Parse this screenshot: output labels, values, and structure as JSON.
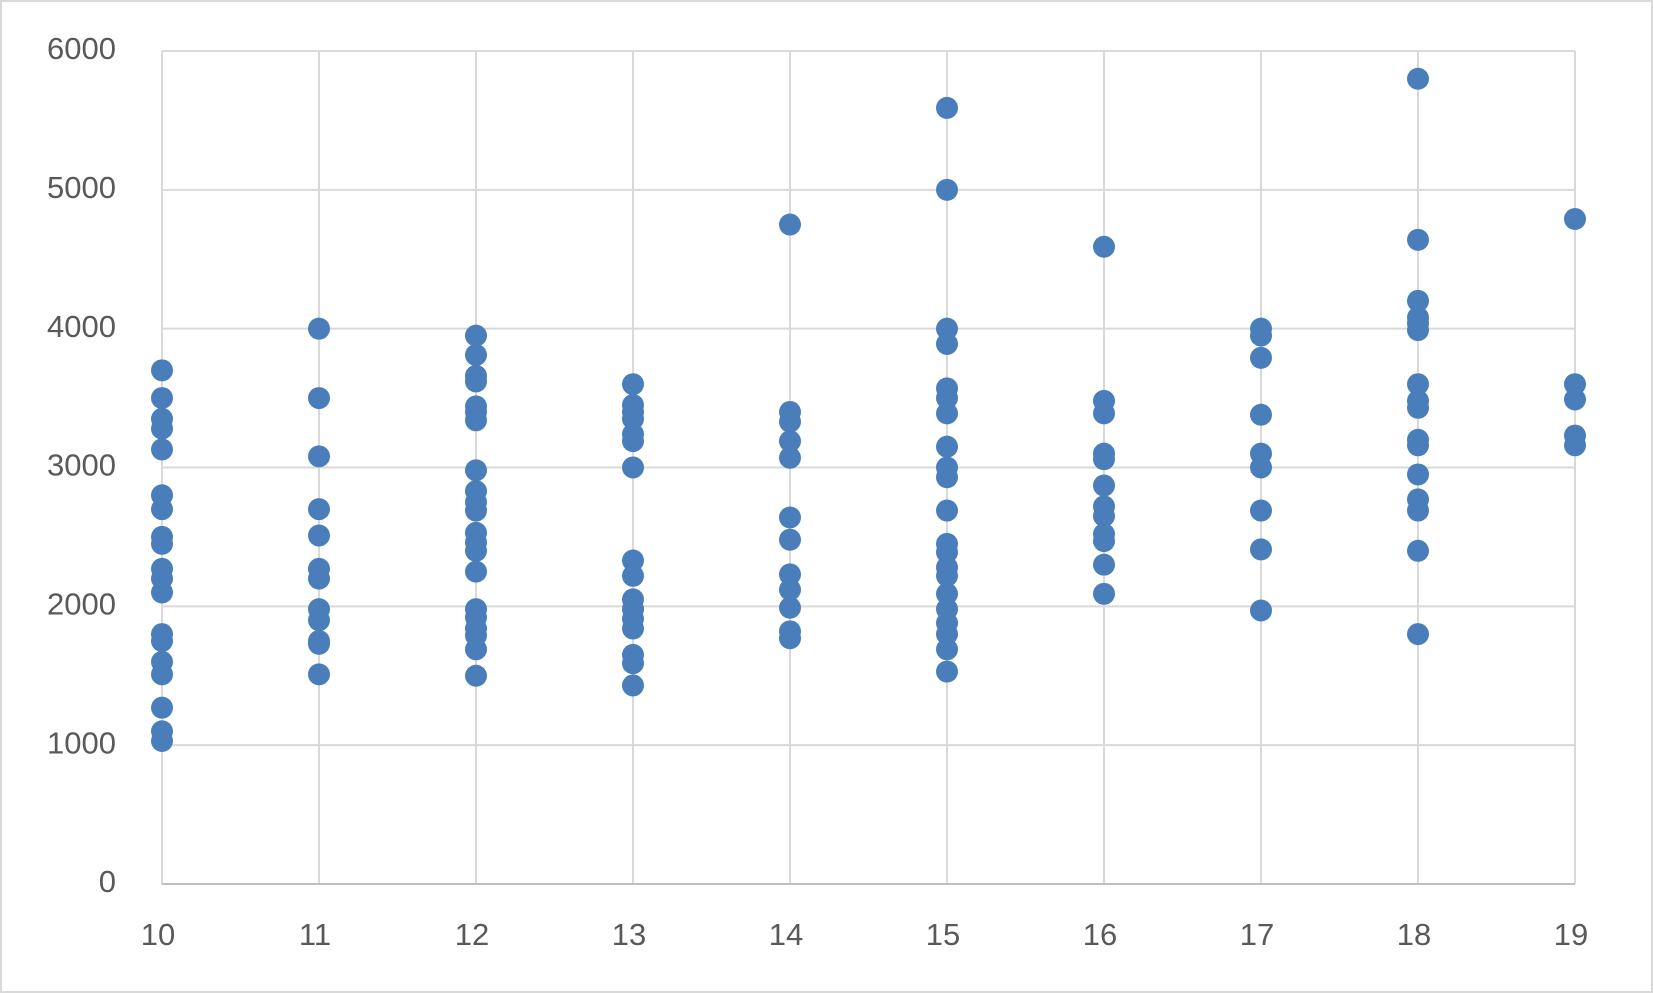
{
  "chart_data": {
    "type": "scatter",
    "color": "#4a7ebb",
    "grid": true,
    "xlim": [
      10,
      19
    ],
    "xticks": [
      10,
      11,
      12,
      13,
      14,
      15,
      16,
      17,
      18,
      19
    ],
    "ylim": [
      0,
      6000
    ],
    "yticks": [
      0,
      1000,
      2000,
      3000,
      4000,
      5000,
      6000
    ],
    "x": [
      10,
      10,
      10,
      10,
      10,
      10,
      10,
      10,
      10,
      10,
      10,
      10,
      10,
      10,
      10,
      10,
      10,
      10,
      10,
      11,
      11,
      11,
      11,
      11,
      11,
      11,
      11,
      11,
      11,
      11,
      11,
      12,
      12,
      12,
      12,
      12,
      12,
      12,
      12,
      12,
      12,
      12,
      12,
      12,
      12,
      12,
      12,
      12,
      12,
      12,
      12,
      12,
      13,
      13,
      13,
      13,
      13,
      13,
      13,
      13,
      13,
      13,
      13,
      13,
      13,
      13,
      13,
      13,
      14,
      14,
      14,
      14,
      14,
      14,
      14,
      14,
      14,
      14,
      14,
      14,
      15,
      15,
      15,
      15,
      15,
      15,
      15,
      15,
      15,
      15,
      15,
      15,
      15,
      15,
      15,
      15,
      15,
      15,
      15,
      15,
      15,
      16,
      16,
      16,
      16,
      16,
      16,
      16,
      16,
      16,
      16,
      16,
      16,
      17,
      17,
      17,
      17,
      17,
      17,
      17,
      17,
      17,
      18,
      18,
      18,
      18,
      18,
      18,
      18,
      18,
      18,
      18,
      18,
      18,
      18,
      18,
      18,
      18,
      19,
      19,
      19,
      19,
      19
    ],
    "y": [
      3700,
      3500,
      3350,
      3280,
      3130,
      2800,
      2700,
      2500,
      2450,
      2270,
      2200,
      2100,
      1800,
      1750,
      1600,
      1510,
      1270,
      1100,
      1030,
      4000,
      3500,
      3080,
      2700,
      2510,
      2270,
      2200,
      1980,
      1900,
      1750,
      1730,
      1510,
      3950,
      3810,
      3660,
      3620,
      3440,
      3400,
      3340,
      2980,
      2830,
      2750,
      2690,
      2530,
      2460,
      2400,
      2250,
      1980,
      1920,
      1840,
      1790,
      1690,
      1500,
      3600,
      3450,
      3400,
      3350,
      3240,
      3190,
      3000,
      2330,
      2220,
      2050,
      1980,
      1910,
      1840,
      1650,
      1590,
      1430,
      4750,
      3400,
      3330,
      3190,
      3070,
      2640,
      2480,
      2230,
      2120,
      1990,
      1820,
      1770,
      5590,
      5000,
      4000,
      3890,
      3570,
      3500,
      3390,
      3150,
      3000,
      2930,
      2690,
      2450,
      2390,
      2280,
      2220,
      2090,
      1980,
      1880,
      1800,
      1690,
      1530,
      4590,
      3480,
      3390,
      3100,
      3060,
      2870,
      2720,
      2650,
      2520,
      2470,
      2300,
      2090,
      4000,
      3950,
      3790,
      3380,
      3100,
      3000,
      2690,
      2410,
      1970,
      5800,
      4640,
      4200,
      4080,
      4040,
      3990,
      3600,
      3480,
      3430,
      3200,
      3160,
      2950,
      2770,
      2690,
      2400,
      1800,
      4790,
      3600,
      3490,
      3230,
      3160
    ]
  }
}
